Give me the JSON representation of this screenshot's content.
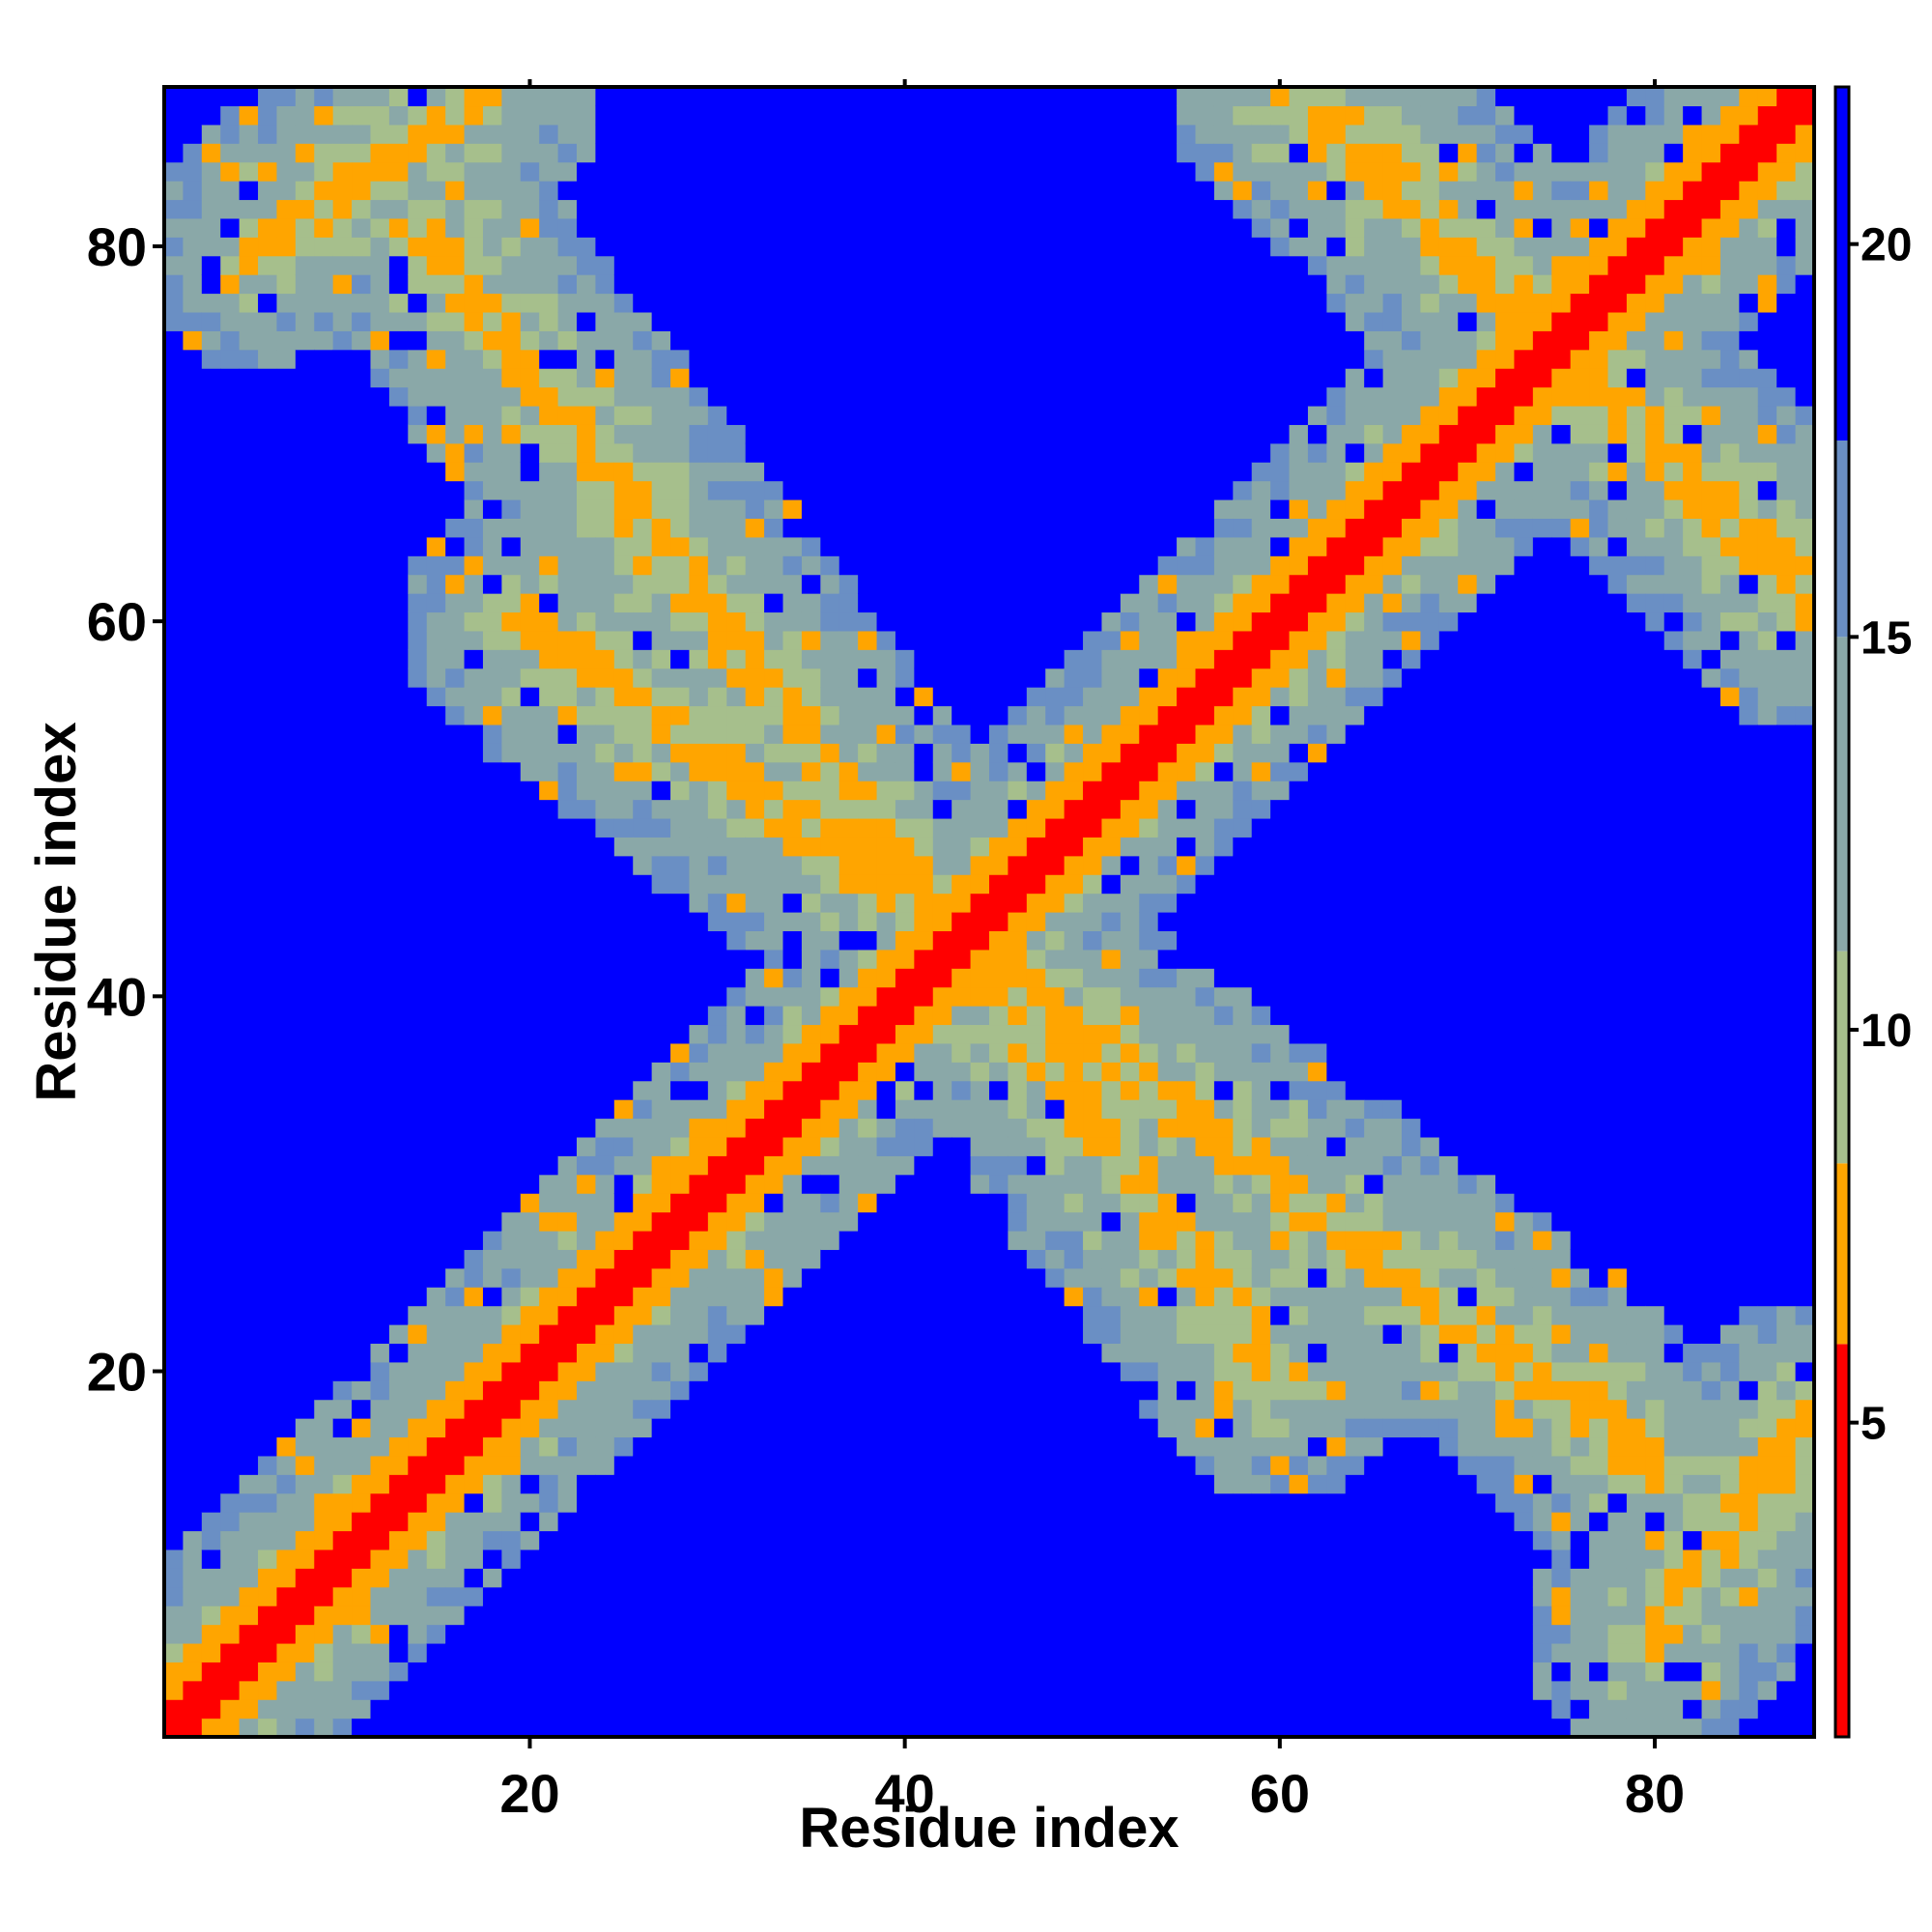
{
  "chart_data": {
    "type": "heatmap",
    "title": "",
    "xlabel": "Residue index",
    "ylabel": "Residue index",
    "n_residues": 88,
    "xlim": [
      0.5,
      88.5
    ],
    "ylim": [
      0.5,
      88.5
    ],
    "x_ticks": [
      20,
      40,
      60,
      80
    ],
    "y_ticks": [
      20,
      40,
      60,
      80
    ],
    "x_tick_labels": [
      "20",
      "40",
      "60",
      "80"
    ],
    "y_tick_labels": [
      "20",
      "40",
      "60",
      "80"
    ],
    "colorbar": {
      "range": [
        1,
        22
      ],
      "ticks": [
        5,
        10,
        15,
        20
      ],
      "tick_labels": [
        "5",
        "10",
        "15",
        "20"
      ],
      "bands": [
        {
          "from": 0,
          "to": 6,
          "color": "#ff0000"
        },
        {
          "from": 6,
          "to": 8.3,
          "color": "#ffa500"
        },
        {
          "from": 8.3,
          "to": 11,
          "color": "#a6bf8c"
        },
        {
          "from": 11,
          "to": 15,
          "color": "#8aa8a8"
        },
        {
          "from": 15,
          "to": 17.5,
          "color": "#6a8fc4"
        },
        {
          "from": 17.5,
          "to": 22,
          "color": "#0000ff"
        }
      ]
    },
    "pattern": "contact map: main diagonal (residue i vs i) of values near 1-3; anti-diagonal bands (orange, ~6-8) crossing the main diagonal near residues 40 and 76; greenish/grey halos (~9-17) around the bands forming a lattice, other regions saturated blue (>21)",
    "bands_description": [
      {
        "kind": "main diagonal",
        "from": [
          1,
          1
        ],
        "to": [
          88,
          88
        ]
      },
      {
        "kind": "anti-diagonal",
        "from": [
          15,
          80
        ],
        "to": [
          60,
          20
        ]
      },
      {
        "kind": "anti-diagonal",
        "from": [
          62,
          88
        ],
        "to": [
          88,
          61
        ]
      },
      {
        "kind": "anti-diagonal",
        "from": [
          80,
          6
        ],
        "to": [
          88,
          17
        ]
      }
    ]
  }
}
